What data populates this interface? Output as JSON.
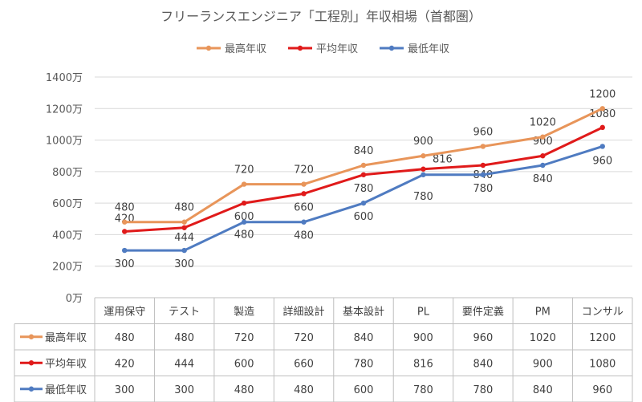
{
  "chart_data": {
    "type": "line",
    "title": "フリーランスエンジニア「工程別」年収相場（首都圏）",
    "categories": [
      "運用保守",
      "テスト",
      "製造",
      "詳細設計",
      "基本設計",
      "PL",
      "要件定義",
      "PM",
      "コンサル"
    ],
    "series": [
      {
        "name": "最高年収",
        "color": "#E8955A",
        "values": [
          480,
          480,
          720,
          720,
          840,
          900,
          960,
          1020,
          1200
        ]
      },
      {
        "name": "平均年収",
        "color": "#E01A1A",
        "values": [
          420,
          444,
          600,
          660,
          780,
          816,
          840,
          900,
          1080
        ]
      },
      {
        "name": "最低年収",
        "color": "#4F7BC1",
        "values": [
          300,
          300,
          480,
          480,
          600,
          780,
          780,
          840,
          960
        ]
      }
    ],
    "ylim": [
      0,
      1400
    ],
    "y_ticks": [
      "0万",
      "200万",
      "400万",
      "600万",
      "800万",
      "1000万",
      "1200万",
      "1400万"
    ],
    "grid": true,
    "legend": "top-center",
    "data_table": true
  }
}
